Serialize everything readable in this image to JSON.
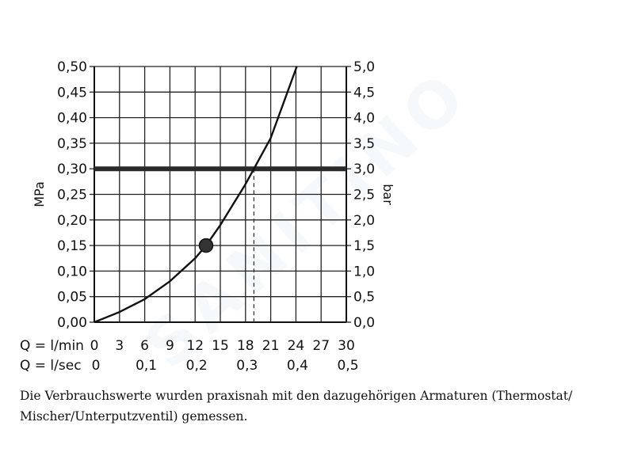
{
  "watermark": "SANITINO",
  "chart_data": {
    "type": "line",
    "title": "",
    "y_left": {
      "label": "MPa",
      "min": 0,
      "max": 0.5,
      "ticks": [
        "0,00",
        "0,05",
        "0,10",
        "0,15",
        "0,20",
        "0,25",
        "0,30",
        "0,35",
        "0,40",
        "0,45",
        "0,50"
      ]
    },
    "y_right": {
      "label": "bar",
      "ticks": [
        "0,0",
        "0,5",
        "1,0",
        "1,5",
        "2,0",
        "2,5",
        "3,0",
        "3,5",
        "4,0",
        "4,5",
        "5,0"
      ]
    },
    "x_lmin": {
      "label": "Q = l/min",
      "min": 0,
      "max": 30,
      "ticks": [
        "0",
        "3",
        "6",
        "9",
        "12",
        "15",
        "18",
        "21",
        "24",
        "27",
        "30"
      ]
    },
    "x_lsec": {
      "label": "Q = l/sec",
      "ticks": [
        {
          "value": 0,
          "text": "0"
        },
        {
          "value": 0.1,
          "text": "0,1"
        },
        {
          "value": 0.2,
          "text": "0,2"
        },
        {
          "value": 0.3,
          "text": "0,3"
        },
        {
          "value": 0.4,
          "text": "0,4"
        },
        {
          "value": 0.5,
          "text": "0,5"
        }
      ]
    },
    "grid": true,
    "series": [
      {
        "x": [
          0,
          3,
          6,
          9,
          12,
          13.3,
          15,
          18,
          19,
          21,
          24.1
        ],
        "y": [
          0.0,
          0.02,
          0.045,
          0.08,
          0.125,
          0.15,
          0.19,
          0.27,
          0.3,
          0.36,
          0.5
        ]
      }
    ],
    "reference_line_y": 0.3,
    "marker_point": {
      "x": 13.3,
      "y": 0.15
    },
    "dashed_drop_x": 19
  },
  "caption_lines": [
    "Die Verbrauchswerte wurden praxisnah mit den dazugehörigen Armaturen (Thermostat/",
    "Mischer/Unterputzventil) gemessen."
  ]
}
